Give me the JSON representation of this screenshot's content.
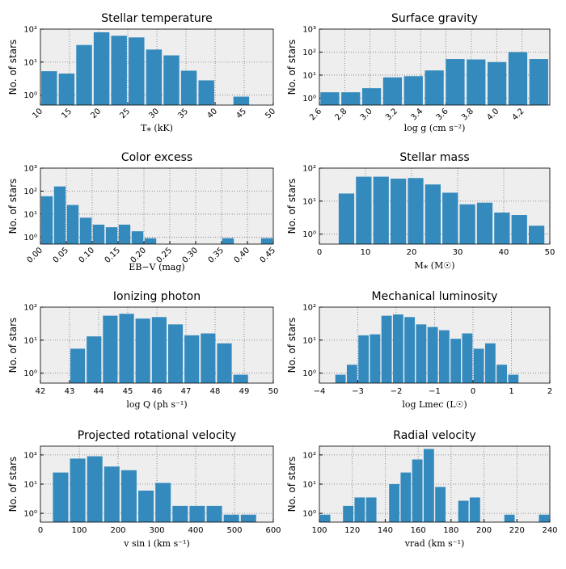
{
  "chart_data": [
    {
      "type": "histogram",
      "title": "Stellar temperature",
      "xlabel": "T⁎ (kK)",
      "ylabel": "No. of stars",
      "bins": [
        10,
        13,
        16,
        19,
        22,
        25,
        28,
        31,
        34,
        37,
        40,
        43,
        46
      ],
      "counts": [
        5.3,
        4.5,
        33,
        80,
        63,
        56,
        24,
        16,
        5.5,
        2.8,
        0,
        0.9
      ],
      "xlim": [
        10,
        50
      ],
      "xticks": [
        10,
        15,
        20,
        25,
        30,
        35,
        40,
        45,
        50
      ],
      "xtick_rotation": 45,
      "ylim": [
        0.5,
        100
      ],
      "yticks": [
        {
          "value": 1,
          "label": "10⁰"
        },
        {
          "value": 10,
          "label": "10¹"
        },
        {
          "value": 100,
          "label": "10²"
        }
      ],
      "log_y": true,
      "grid": true,
      "color": "#348abd"
    },
    {
      "type": "histogram",
      "title": "Surface gravity",
      "xlabel": "log g (cm s⁻²)",
      "ylabel": "No. of stars",
      "bins": [
        2.6,
        2.765,
        2.93,
        3.095,
        3.26,
        3.425,
        3.59,
        3.755,
        3.92,
        4.085,
        4.25,
        4.415
      ],
      "counts": [
        1.8,
        1.8,
        2.7,
        8,
        9,
        16,
        50,
        48,
        37,
        100,
        50
      ],
      "xlim": [
        2.6,
        4.42
      ],
      "xticks": [
        2.6,
        2.8,
        {
          "value": 3,
          "label": "3.0"
        },
        3.2,
        3.4,
        3.6,
        3.8,
        {
          "value": 4,
          "label": "4.0"
        },
        4.2
      ],
      "xtick_rotation": 45,
      "ylim": [
        0.5,
        1000
      ],
      "yticks": [
        {
          "value": 1,
          "label": "10⁰"
        },
        {
          "value": 10,
          "label": "10¹"
        },
        {
          "value": 100,
          "label": "10²"
        },
        {
          "value": 1000,
          "label": "10³"
        }
      ],
      "log_y": true,
      "grid": true,
      "color": "#348abd"
    },
    {
      "type": "histogram",
      "title": "Color excess",
      "xlabel": "EB−V (mag)",
      "ylabel": "No. of stars",
      "bins": [
        0,
        0.025,
        0.05,
        0.075,
        0.1,
        0.125,
        0.15,
        0.175,
        0.2,
        0.225,
        0.25,
        0.275,
        0.3,
        0.325,
        0.35,
        0.375,
        0.4,
        0.425,
        0.45
      ],
      "counts": [
        60,
        160,
        25,
        7,
        3.5,
        2.7,
        3.5,
        1.8,
        0.9,
        0,
        0,
        0,
        0,
        0,
        0.9,
        0,
        0,
        0.9
      ],
      "xlim": [
        0,
        0.45
      ],
      "xticks": [
        {
          "value": 0,
          "label": "0.00"
        },
        0.05,
        {
          "value": 0.1,
          "label": "0.10"
        },
        0.15,
        {
          "value": 0.2,
          "label": "0.20"
        },
        0.25,
        {
          "value": 0.3,
          "label": "0.30"
        },
        0.35,
        {
          "value": 0.4,
          "label": "0.40"
        },
        0.45
      ],
      "xtick_rotation": 45,
      "ylim": [
        0.5,
        1000
      ],
      "yticks": [
        {
          "value": 1,
          "label": "10⁰"
        },
        {
          "value": 10,
          "label": "10¹"
        },
        {
          "value": 100,
          "label": "10²"
        },
        {
          "value": 1000,
          "label": "10³"
        }
      ],
      "log_y": true,
      "grid": true,
      "color": "#348abd"
    },
    {
      "type": "histogram",
      "title": "Stellar mass",
      "xlabel": "M⁎ (M☉)",
      "ylabel": "No. of stars",
      "bins": [
        4,
        7.75,
        11.5,
        15.25,
        19,
        22.75,
        26.5,
        30.25,
        34,
        37.75,
        41.5,
        45.25,
        49
      ],
      "counts": [
        17,
        55,
        55,
        48,
        50,
        32,
        18,
        8,
        9,
        4.5,
        3.8,
        1.8
      ],
      "xlim": [
        0,
        50
      ],
      "xticks": [
        0,
        10,
        20,
        30,
        40,
        50
      ],
      "ylim": [
        0.5,
        100
      ],
      "yticks": [
        {
          "value": 1,
          "label": "10⁰"
        },
        {
          "value": 10,
          "label": "10¹"
        },
        {
          "value": 100,
          "label": "10²"
        }
      ],
      "log_y": true,
      "grid": true,
      "color": "#348abd"
    },
    {
      "type": "histogram",
      "title": "Ionizing photon",
      "xlabel": "log Q (ph s⁻¹)",
      "ylabel": "No. of stars",
      "bins": [
        43,
        43.56,
        44.12,
        44.68,
        45.24,
        45.8,
        46.36,
        46.92,
        47.48,
        48.04,
        48.6,
        49.16
      ],
      "counts": [
        5.5,
        13,
        55,
        63,
        45,
        50,
        30,
        14,
        16,
        8,
        0.9
      ],
      "xlim": [
        42,
        50
      ],
      "xticks": [
        42,
        43,
        44,
        45,
        46,
        47,
        48,
        49,
        50
      ],
      "ylim": [
        0.5,
        100
      ],
      "yticks": [
        {
          "value": 1,
          "label": "10⁰"
        },
        {
          "value": 10,
          "label": "10¹"
        },
        {
          "value": 100,
          "label": "10²"
        }
      ],
      "log_y": true,
      "grid": true,
      "color": "#348abd"
    },
    {
      "type": "histogram",
      "title": "Mechanical luminosity",
      "xlabel": "log Lmec (L☉)",
      "ylabel": "No. of stars",
      "bins": [
        -3.6,
        -3.3,
        -3,
        -2.7,
        -2.4,
        -2.1,
        -1.8,
        -1.5,
        -1.2,
        -0.9,
        -0.6,
        -0.3,
        0,
        0.3,
        0.6,
        0.9,
        1.2
      ],
      "counts": [
        0.9,
        1.8,
        14,
        15,
        55,
        60,
        50,
        30,
        25,
        20,
        11,
        16,
        5.5,
        8,
        1.8,
        0.9
      ],
      "xlim": [
        -4,
        2
      ],
      "xticks": [
        {
          "value": -4,
          "label": "−4"
        },
        {
          "value": -3,
          "label": "−3"
        },
        {
          "value": -2,
          "label": "−2"
        },
        {
          "value": -1,
          "label": "−1"
        },
        0,
        1,
        2
      ],
      "ylim": [
        0.5,
        100
      ],
      "yticks": [
        {
          "value": 1,
          "label": "10⁰"
        },
        {
          "value": 10,
          "label": "10¹"
        },
        {
          "value": 100,
          "label": "10²"
        }
      ],
      "log_y": true,
      "grid": true,
      "color": "#348abd"
    },
    {
      "type": "histogram",
      "title": "Projected rotational velocity",
      "xlabel": "v sin i (km s⁻¹)",
      "ylabel": "No. of stars",
      "bins": [
        30,
        74,
        118,
        162,
        206,
        250,
        294,
        338,
        382,
        426,
        470,
        514,
        558
      ],
      "counts": [
        25,
        75,
        90,
        40,
        30,
        6,
        11,
        1.8,
        1.8,
        1.8,
        0.9,
        0.9
      ],
      "xlim": [
        0,
        600
      ],
      "xticks": [
        0,
        100,
        200,
        300,
        400,
        500,
        600
      ],
      "ylim": [
        0.5,
        200
      ],
      "yticks": [
        {
          "value": 1,
          "label": "10⁰"
        },
        {
          "value": 10,
          "label": "10¹"
        },
        {
          "value": 100,
          "label": "10²"
        }
      ],
      "log_y": true,
      "grid": true,
      "color": "#348abd"
    },
    {
      "type": "histogram",
      "title": "Radial velocity",
      "xlabel": "vrad (km s⁻¹)",
      "ylabel": "No. of stars",
      "bins": [
        100,
        107,
        114,
        121,
        128,
        135,
        142,
        149,
        156,
        163,
        170,
        177,
        184,
        191,
        198,
        205,
        212,
        219,
        226,
        233,
        240
      ],
      "counts": [
        0.9,
        0,
        1.8,
        3.5,
        3.5,
        0,
        10,
        25,
        70,
        160,
        8,
        0,
        2.7,
        3.5,
        0,
        0,
        0.9,
        0,
        0,
        0.9
      ],
      "xlim": [
        100,
        240
      ],
      "xticks": [
        100,
        120,
        140,
        160,
        180,
        200,
        220,
        240
      ],
      "ylim": [
        0.5,
        200
      ],
      "yticks": [
        {
          "value": 1,
          "label": "10⁰"
        },
        {
          "value": 10,
          "label": "10¹"
        },
        {
          "value": 100,
          "label": "10²"
        }
      ],
      "log_y": true,
      "grid": true,
      "color": "#348abd"
    }
  ]
}
